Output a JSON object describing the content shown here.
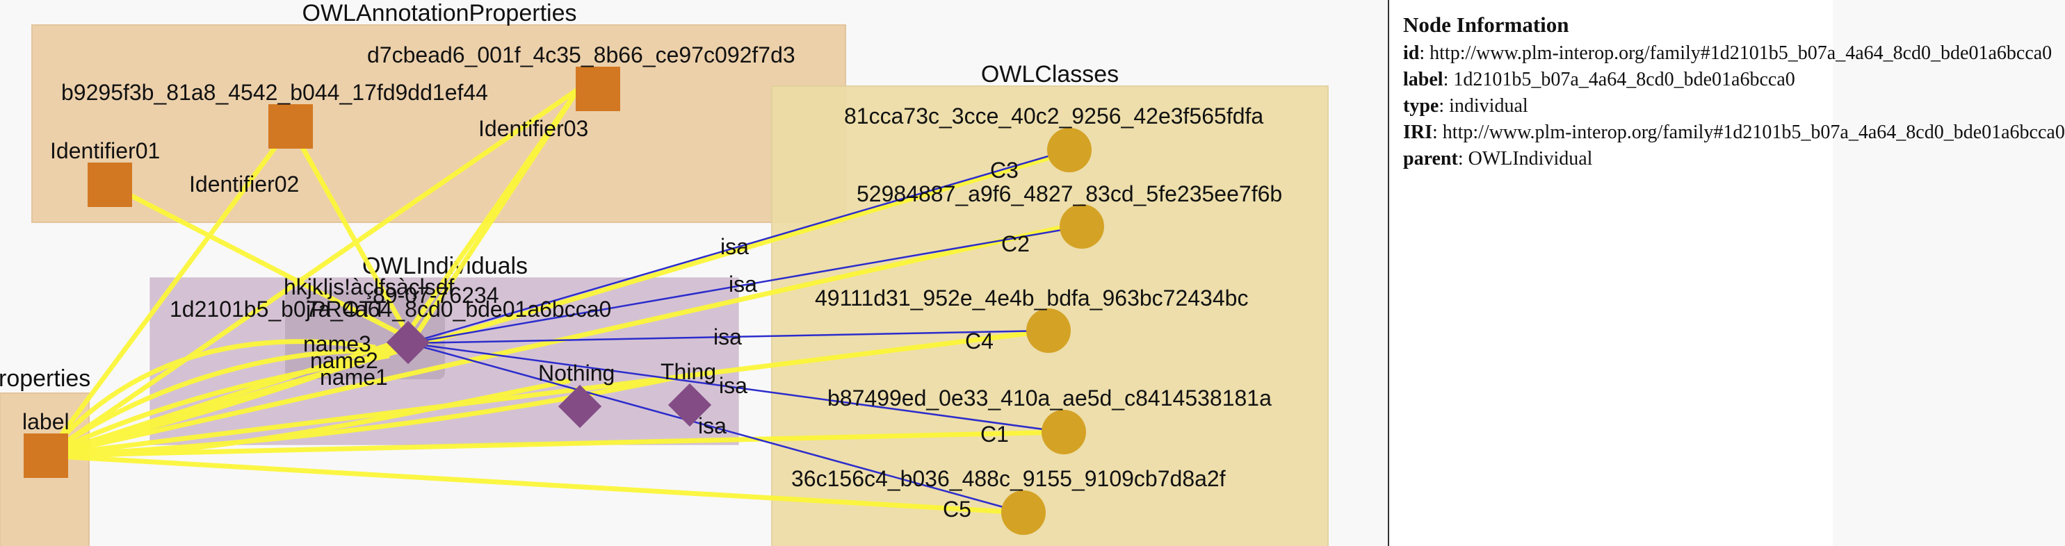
{
  "groups": {
    "annotation_properties": "OWLAnnotationProperties",
    "classes": "OWLClasses",
    "individuals": "OWLIndividuals",
    "properties_partial": "roperties"
  },
  "nodes": {
    "d7cb": "d7cbead6_001f_4c35_8b66_ce97c092f7d3",
    "b929": "b9295f3b_81a8_4542_b044_17fd9dd1ef44",
    "identifier01": "Identifier01",
    "identifier02": "Identifier02",
    "identifier03": "Identifier03",
    "label": "label",
    "c81cca": "81cca73c_3cce_40c2_9256_42e3f565fdfa",
    "c5298": "52984887_a9f6_4827_83cd_5fe235ee7f6b",
    "c4911": "49111d31_952e_4e4b_bdfa_963bc72434bc",
    "cb874": "b87499ed_0e33_410a_ae5d_c8414538181a",
    "c36c1": "36c156c4_b036_488c_9155_9109cb7d8a2f",
    "ind_1d21": "1d2101b5_b07a_4a64_8cd0_bde01a6bcca0",
    "ind_hkj": "hkjkljs!àçlfsàçlsdf",
    "ind_867": "89-07-76234",
    "ind_jpr": "jPROTT",
    "name1": "name1",
    "name2": "name2",
    "name3": "name3",
    "nothing": "Nothing",
    "thing": "Thing"
  },
  "edge_labels": {
    "c1": "C1",
    "c2": "C2",
    "c3": "C3",
    "c4": "C4",
    "c5": "C5",
    "isa": "isa"
  },
  "info": {
    "title": "Node Information",
    "rows": {
      "id": {
        "key": "id",
        "value": ": http://www.plm-interop.org/family#1d2101b5_b07a_4a64_8cd0_bde01a6bcca0"
      },
      "label": {
        "key": "label",
        "value": ": 1d2101b5_b07a_4a64_8cd0_bde01a6bcca0"
      },
      "type": {
        "key": "type",
        "value": ": individual"
      },
      "iri": {
        "key": "IRI",
        "value": ": http://www.plm-interop.org/family#1d2101b5_b07a_4a64_8cd0_bde01a6bcca0"
      },
      "parent": {
        "key": "parent",
        "value": ": OWLIndividual"
      }
    }
  },
  "colors": {
    "annotation_group_fill": "#ecd0aa",
    "class_group_fill": "#eddca5",
    "individual_group_fill": "#d3c0d3",
    "property_node": "#d27822",
    "class_node": "#d4a225",
    "individual_node": "#834c85",
    "annotation_edge": "#fcf63a",
    "isa_edge": "#2c2ccc"
  }
}
